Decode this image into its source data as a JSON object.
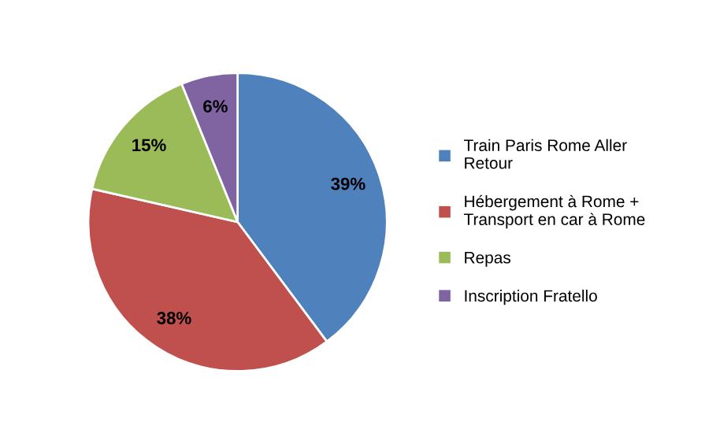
{
  "chart_data": {
    "type": "pie",
    "categories": [
      "Train Paris Rome Aller Retour",
      "Hébergement à Rome + Transport en car à Rome",
      "Repas",
      "Inscription Fratello"
    ],
    "values": [
      39,
      38,
      15,
      6
    ],
    "colors": [
      "#4f81bd",
      "#c0504d",
      "#9bbb59",
      "#8064a2"
    ],
    "value_labels": [
      "39%",
      "38%",
      "15%",
      "6%"
    ],
    "legend": "right"
  }
}
